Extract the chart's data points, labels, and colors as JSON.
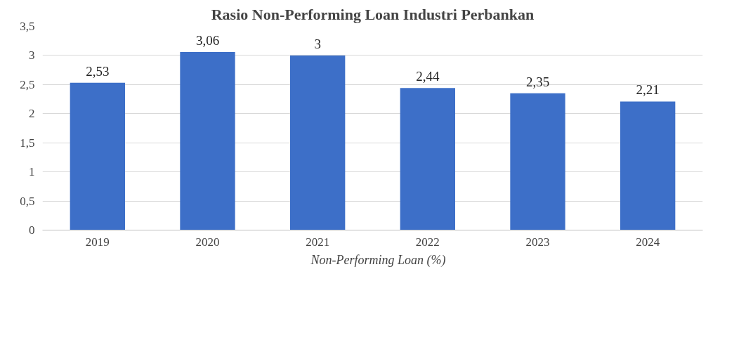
{
  "chart_data": {
    "type": "bar",
    "title": "Rasio Non-Performing Loan Industri Perbankan",
    "categories": [
      "2019",
      "2020",
      "2021",
      "2022",
      "2023",
      "2024"
    ],
    "series": [
      {
        "name": "Non-Performing Loan (%)",
        "color": "#3d6fc8",
        "values": [
          2.53,
          3.06,
          3,
          2.44,
          2.35,
          2.21
        ]
      }
    ],
    "value_labels": [
      "2,53",
      "3,06",
      "3",
      "2,44",
      "2,35",
      "2,21"
    ],
    "ylim": [
      0,
      3.5
    ],
    "yticks": [
      0,
      {
        "value": 0.5,
        "label": "0,5"
      },
      1,
      {
        "value": 1.5,
        "label": "1,5"
      },
      2,
      {
        "value": 2.5,
        "label": "2,5"
      },
      3,
      {
        "value": 3.5,
        "label": "3,5"
      }
    ],
    "grid": "y",
    "legend": "bottom"
  }
}
